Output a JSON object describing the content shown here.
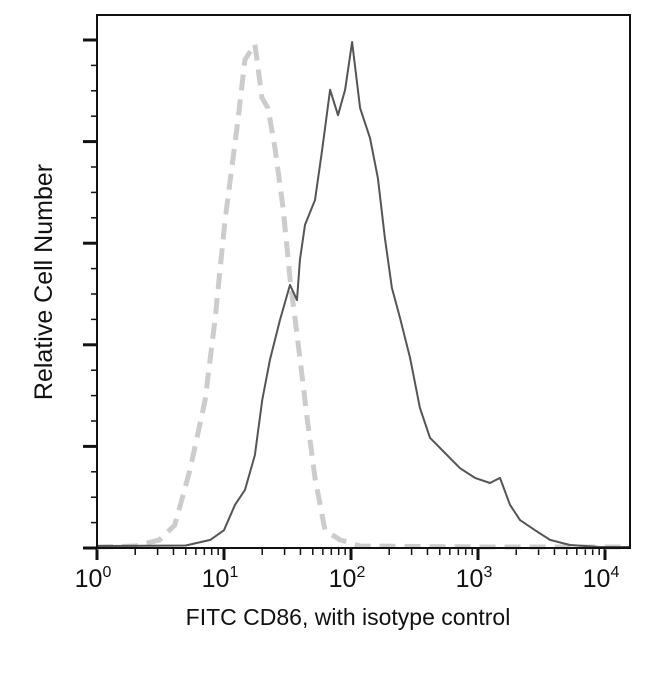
{
  "chart_data": {
    "type": "line",
    "title": "",
    "xlabel": "FITC CD86, with isotype control",
    "ylabel": "Relative Cell Number",
    "x_scale": "log",
    "xlim": [
      1,
      15700
    ],
    "ylim": [
      0,
      105
    ],
    "x_ticks": [
      {
        "value": 1,
        "base": "10",
        "exp": "0"
      },
      {
        "value": 10,
        "base": "10",
        "exp": "1"
      },
      {
        "value": 100,
        "base": "10",
        "exp": "2"
      },
      {
        "value": 1000,
        "base": "10",
        "exp": "3"
      },
      {
        "value": 10000,
        "base": "10",
        "exp": "4"
      }
    ],
    "y_major_ticks": [
      0,
      20,
      40,
      60,
      80,
      100
    ],
    "y_tick_labels_shown": false,
    "grid": false,
    "legend": "none",
    "series": [
      {
        "style": "dashed",
        "color": "#cccccc",
        "x": [
          1,
          2,
          3.1,
          4.1,
          5.4,
          7.1,
          8.5,
          10.2,
          12.9,
          14.6,
          17.5,
          19.9,
          22.2,
          25.2,
          29.2,
          33.1,
          39.6,
          45.1,
          52.1,
          62.4,
          81.9,
          118,
          1000,
          15700
        ],
        "y": [
          0.2,
          0.4,
          1.6,
          4.5,
          15.4,
          29.1,
          44.9,
          64.6,
          84.3,
          96.1,
          99.2,
          88.6,
          86.6,
          78.7,
          66.9,
          53.1,
          37.4,
          25.6,
          13.8,
          3.5,
          1.6,
          0.4,
          0.2,
          0.2
        ]
      },
      {
        "style": "solid",
        "color": "#555555",
        "x": [
          1,
          5,
          7.8,
          10,
          12.2,
          14.6,
          17.5,
          20,
          23,
          27.6,
          33.1,
          37.6,
          39.6,
          43.4,
          52.1,
          59.2,
          68.4,
          79,
          89.8,
          102,
          118,
          141,
          163,
          185,
          210,
          243,
          292,
          349,
          419,
          550,
          722,
          947,
          1243,
          1490,
          1786,
          2140,
          2810,
          3690,
          5300,
          9130,
          15700
        ],
        "y": [
          0.4,
          0.5,
          1.6,
          3.5,
          8.5,
          11.4,
          18.3,
          29.1,
          37,
          44.9,
          51.8,
          48.8,
          56.7,
          63.6,
          68.5,
          78.3,
          90.2,
          85.2,
          90.2,
          99.6,
          86.6,
          80.7,
          72.8,
          61,
          51.2,
          45.3,
          37.4,
          27.6,
          21.7,
          18.7,
          15.7,
          13.8,
          12.8,
          13.8,
          8.5,
          5.5,
          3.5,
          1.6,
          0.6,
          0.2,
          0.2
        ]
      }
    ]
  }
}
